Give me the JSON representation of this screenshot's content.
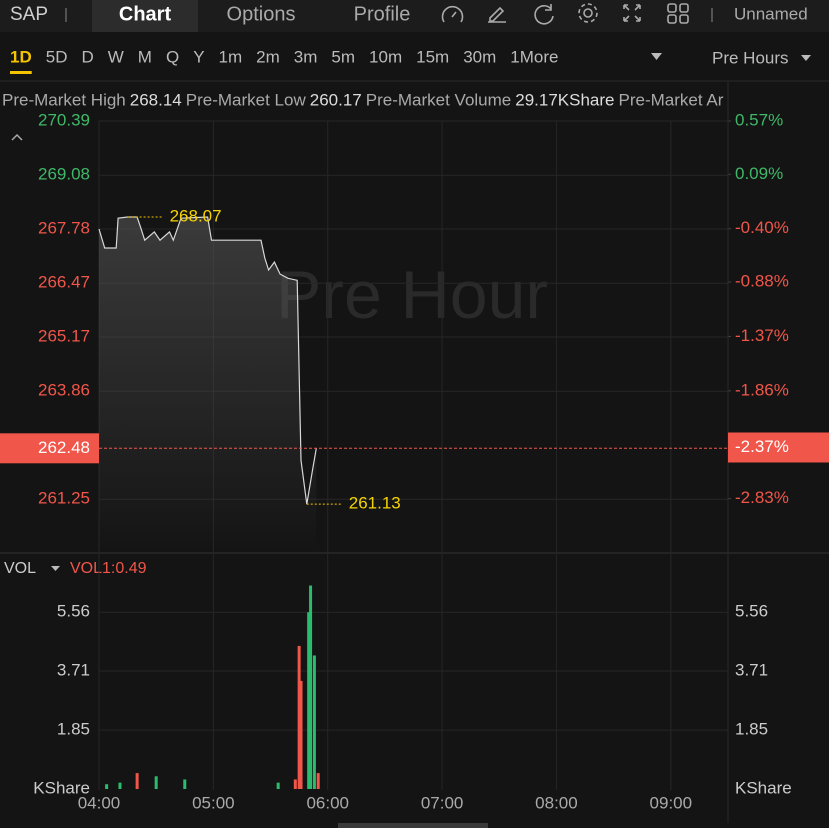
{
  "header": {
    "symbol": "SAP",
    "tabs": [
      "Chart",
      "Options",
      "Profile"
    ],
    "layout_name": "Unnamed"
  },
  "periods": {
    "items": [
      "1D",
      "5D",
      "D",
      "W",
      "M",
      "Q",
      "Y",
      "1m",
      "2m",
      "3m",
      "5m",
      "10m",
      "15m",
      "30m",
      "1"
    ],
    "more": "More",
    "session": "Pre Hours"
  },
  "stats": [
    {
      "label": "Pre-Market High",
      "value": "268.14"
    },
    {
      "label": "Pre-Market Low",
      "value": "260.17"
    },
    {
      "label": "Pre-Market Volume",
      "value": "29.17KShare"
    },
    {
      "label": "Pre-Market Ar"
    }
  ],
  "chart_data": [
    {
      "type": "line",
      "watermark": "Pre Hour",
      "color": "#d8d8d8",
      "x": [
        "04:00",
        "04:03",
        "04:09",
        "04:10",
        "04:15",
        "04:20",
        "04:22",
        "04:24",
        "04:29",
        "04:32",
        "04:37",
        "04:39",
        "04:43",
        "04:57",
        "04:59",
        "05:25",
        "05:27",
        "05:29",
        "05:32",
        "05:35",
        "05:39",
        "05:44",
        "05:46",
        "05:49",
        "05:52",
        "05:54"
      ],
      "values": [
        267.78,
        267.32,
        267.32,
        268.04,
        268.07,
        268.07,
        267.8,
        267.51,
        267.71,
        267.51,
        267.71,
        267.51,
        268.04,
        268.07,
        267.51,
        267.51,
        267.08,
        266.79,
        266.98,
        266.69,
        266.59,
        266.54,
        262.19,
        261.13,
        261.95,
        262.48
      ],
      "xlim": [
        "04:00",
        "09:30"
      ],
      "xticks": [
        "04:00",
        "05:00",
        "06:00",
        "07:00",
        "08:00",
        "09:00"
      ],
      "ylim": [
        259.95,
        270.39
      ],
      "yticks": [
        270.39,
        269.08,
        267.78,
        266.47,
        265.17,
        263.86,
        261.25
      ],
      "y2lim": [
        -3.32,
        0.57
      ],
      "y2ticks": [
        {
          "value": 0.57,
          "label": "0.57%"
        },
        {
          "value": 0.09,
          "label": "0.09%"
        },
        {
          "value": -0.4,
          "label": "-0.40%"
        },
        {
          "value": -0.88,
          "label": "-0.88%"
        },
        {
          "value": -1.37,
          "label": "-1.37%"
        },
        {
          "value": -1.86,
          "label": "-1.86%"
        },
        {
          "value": -2.83,
          "label": "-2.83%"
        }
      ],
      "last_price": 262.48,
      "last_change": {
        "value": -2.37,
        "label": "-2.37%"
      },
      "annotations": [
        {
          "x": "04:15",
          "value": 268.07
        },
        {
          "x": "05:49",
          "value": 261.13
        }
      ],
      "grid": true
    },
    {
      "type": "bar",
      "label": "VOL",
      "indicator": "VOL1:0.49",
      "unit": "KShare",
      "x": [
        "04:04",
        "04:11",
        "04:20",
        "04:30",
        "04:45",
        "05:34",
        "05:43",
        "05:45",
        "05:46",
        "05:50",
        "05:51",
        "05:53",
        "05:55"
      ],
      "values": [
        0.15,
        0.2,
        0.5,
        0.4,
        0.3,
        0.2,
        0.3,
        4.5,
        3.4,
        5.56,
        6.4,
        4.2,
        0.5
      ],
      "colors": [
        "#2bbd6e",
        "#2bbd6e",
        "#f0564a",
        "#2bbd6e",
        "#2bbd6e",
        "#2bbd6e",
        "#f0564a",
        "#f0564a",
        "#f0564a",
        "#2bbd6e",
        "#2bbd6e",
        "#2bbd6e",
        "#f0564a"
      ],
      "ylim": [
        0,
        7.36
      ],
      "yticks": [
        1.85,
        3.71,
        5.56
      ],
      "grid": true
    }
  ]
}
